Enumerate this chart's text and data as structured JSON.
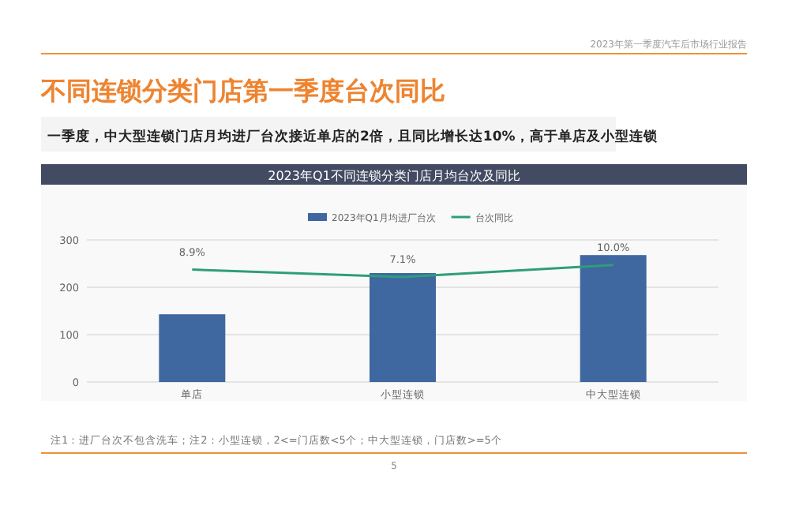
{
  "chart_data": {
    "type": "bar",
    "title": "不同连锁分类门店第一季度台次同比",
    "subtitle": "一季度，中大型连锁门店月均进厂台次接近单店的2倍，且同比增长达10%，高于单店及小型连锁",
    "categories": [
      "单店",
      "小型连锁",
      "中大型连锁"
    ],
    "series": [
      {
        "name": "2023年Q1月均进厂台次",
        "color": "#3f67a0",
        "values": [
          143,
          230,
          268
        ]
      },
      {
        "name": "台次同比",
        "type": "line",
        "axis": "y2",
        "color": "#2e9e7a",
        "values": [
          8.9,
          7.1,
          10.0
        ],
        "value_labels": [
          "8.9%",
          "7.1%",
          "10.0%"
        ]
      }
    ],
    "ylim": [
      0,
      300
    ],
    "yticks": [
      0,
      100,
      200,
      300
    ],
    "y2lim": [
      -18,
      16
    ],
    "tick_labels": "x_y",
    "grid": "y",
    "legend": "top",
    "annotations": [
      "2023年第一季度汽车后市场行业报告",
      "2023年Q1不同连锁分类门店月均台次及同比",
      "注1：进厂台次不包含洗车；注2：小型连锁，2<=门店数<5个；中大型连锁，门店数>=5个",
      "5"
    ]
  }
}
